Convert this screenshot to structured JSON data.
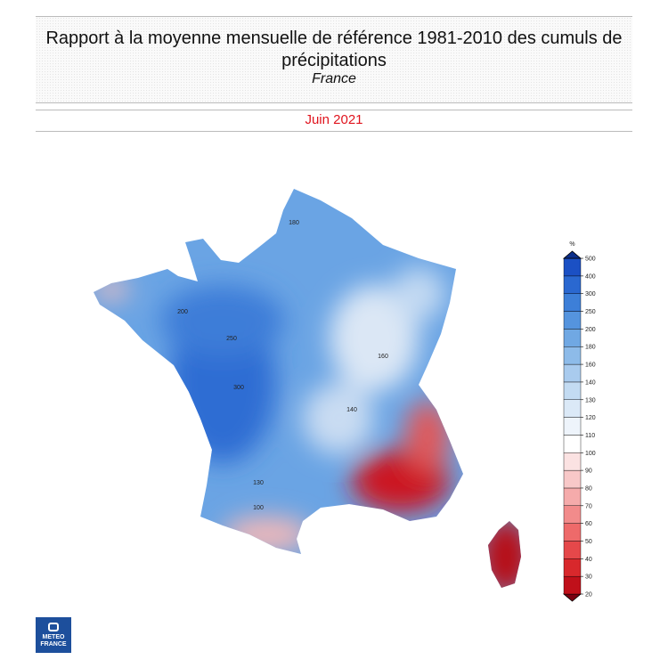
{
  "header": {
    "title": "Rapport à la moyenne mensuelle de référence 1981-2010 des cumuls de précipitations",
    "subtitle": "France",
    "period": "Juin 2021"
  },
  "legend": {
    "unit": "%",
    "ticks": [
      20,
      30,
      40,
      50,
      60,
      70,
      80,
      90,
      100,
      110,
      120,
      130,
      140,
      160,
      180,
      200,
      250,
      300,
      400,
      500
    ],
    "colors": [
      "#7a0010",
      "#c0101a",
      "#d8282c",
      "#e5484a",
      "#ee6a6a",
      "#f28b8b",
      "#f5abab",
      "#f8c8c8",
      "#fbe2e2",
      "#ffffff",
      "#eef4fb",
      "#dbe9f7",
      "#c3dbf2",
      "#a9cbee",
      "#8dbbe9",
      "#70a8e3",
      "#5594de",
      "#3d7fd8",
      "#2a68d0",
      "#1b50c4",
      "#0c2f8a"
    ]
  },
  "map": {
    "contour_labels": [
      "180",
      "200",
      "250",
      "300",
      "160",
      "140",
      "130",
      "100"
    ]
  },
  "logo": {
    "text": "METEO FRANCE"
  }
}
